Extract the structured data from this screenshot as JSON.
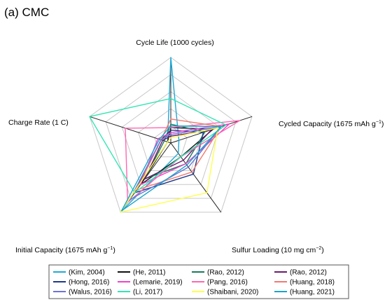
{
  "chart_data": {
    "type": "radar",
    "panel_label": "(a) CMC",
    "axes": [
      {
        "label": "Cycle Life (1000 cycles)",
        "base": "Cycle Life (1000 cycles)",
        "sup": "",
        "tail": ""
      },
      {
        "label": "Cycled Capacity (1675 mAh g−1)",
        "base": "Cycled Capacity (1675 mAh g",
        "sup": "−1",
        "tail": ")"
      },
      {
        "label": "Sulfur Loading (10 mg cm−2)",
        "base": "Sulfur Loading (10 mg cm",
        "sup": "−2",
        "tail": ")"
      },
      {
        "label": "Initial Capacity (1675 mAh g−1)",
        "base": "Initial Capacity (1675 mAh g",
        "sup": "−1",
        "tail": ")"
      },
      {
        "label": "Charge Rate (1 C)",
        "base": "Charge Rate (1 C)",
        "sup": "",
        "tail": ""
      }
    ],
    "rmax": 1,
    "grid_levels": 5,
    "grid": true,
    "legend_position": "bottom",
    "series": [
      {
        "name": "(Kim, 2004)",
        "color": "#1fa9d6",
        "values": [
          1.0,
          0.1,
          0.15,
          1.0,
          0.04
        ]
      },
      {
        "name": "(He, 2011)",
        "color": "#111111",
        "values": [
          0.18,
          0.52,
          0.2,
          0.6,
          0.04
        ]
      },
      {
        "name": "(Rao, 2012)",
        "color": "#1a7a5e",
        "values": [
          0.22,
          0.42,
          0.3,
          0.52,
          0.08
        ]
      },
      {
        "name": "(Rao, 2012)",
        "color": "#6a1b6e",
        "values": [
          0.08,
          0.5,
          0.25,
          0.52,
          0.1
        ]
      },
      {
        "name": "(Hong, 2016)",
        "color": "#1d3a8a",
        "values": [
          0.15,
          0.4,
          0.45,
          0.72,
          0.12
        ]
      },
      {
        "name": "(Lemarie, 2019)",
        "color": "#ee44cc",
        "values": [
          0.12,
          0.72,
          0.3,
          0.6,
          0.16
        ]
      },
      {
        "name": "(Pang, 2016)",
        "color": "#ff66b3",
        "values": [
          0.18,
          0.85,
          0.2,
          0.86,
          0.56
        ]
      },
      {
        "name": "(Huang, 2018)",
        "color": "#f07a70",
        "values": [
          0.28,
          0.62,
          0.42,
          0.68,
          0.12
        ]
      },
      {
        "name": "(Walus, 2016)",
        "color": "#6a74d6",
        "values": [
          0.1,
          0.62,
          0.35,
          0.82,
          0.12
        ]
      },
      {
        "name": "(Li, 2017)",
        "color": "#33e6b3",
        "values": [
          0.52,
          0.68,
          0.2,
          0.72,
          1.0
        ]
      },
      {
        "name": "(Shaibani, 2020)",
        "color": "#ffff4d",
        "values": [
          0.06,
          0.58,
          0.72,
          1.0,
          0.04
        ]
      },
      {
        "name": "(Huang, 2021)",
        "color": "#1aa3cc",
        "values": [
          0.2,
          0.62,
          0.32,
          0.98,
          0.14
        ]
      }
    ]
  }
}
